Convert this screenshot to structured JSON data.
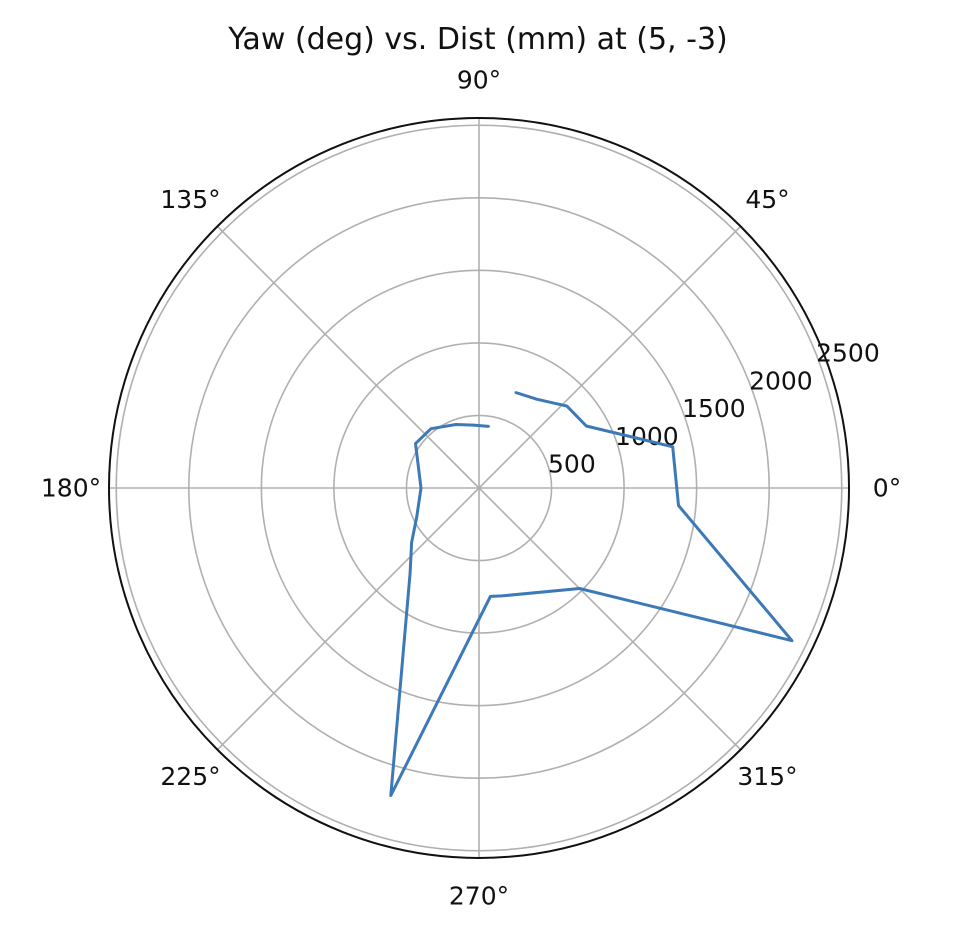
{
  "chart_data": {
    "type": "polar-line",
    "title": "Yaw (deg) vs. Dist (mm) at (5, -3)",
    "theta_unit": "deg",
    "r_lim": [
      0,
      2550
    ],
    "angle_ticks": [
      {
        "deg": 0,
        "label": "0°"
      },
      {
        "deg": 45,
        "label": "45°"
      },
      {
        "deg": 90,
        "label": "90°"
      },
      {
        "deg": 135,
        "label": "135°"
      },
      {
        "deg": 180,
        "label": "180°"
      },
      {
        "deg": 225,
        "label": "225°"
      },
      {
        "deg": 270,
        "label": "270°"
      },
      {
        "deg": 315,
        "label": "315°"
      }
    ],
    "radial_ticks": [
      {
        "value": 500,
        "label": "500"
      },
      {
        "value": 1000,
        "label": "1000"
      },
      {
        "value": 1500,
        "label": "1500"
      },
      {
        "value": 2000,
        "label": "2000"
      },
      {
        "value": 2500,
        "label": "2500"
      }
    ],
    "grid": true,
    "series": [
      {
        "color": "#3d78b7",
        "points": [
          {
            "theta": 81,
            "r": 430
          },
          {
            "theta": 95,
            "r": 435
          },
          {
            "theta": 110,
            "r": 466
          },
          {
            "theta": 129,
            "r": 526
          },
          {
            "theta": 145,
            "r": 534
          },
          {
            "theta": 180,
            "r": 400
          },
          {
            "theta": 205,
            "r": 474
          },
          {
            "theta": 219,
            "r": 598
          },
          {
            "theta": 231,
            "r": 755
          },
          {
            "theta": 254,
            "r": 2205
          },
          {
            "theta": 276,
            "r": 751
          },
          {
            "theta": 282,
            "r": 760
          },
          {
            "theta": 315,
            "r": 980
          },
          {
            "theta": 334,
            "r": 2400
          },
          {
            "theta": 355,
            "r": 1380
          },
          {
            "theta": 12,
            "r": 1365
          },
          {
            "theta": 30,
            "r": 854
          },
          {
            "theta": 43,
            "r": 828
          },
          {
            "theta": 57,
            "r": 730
          },
          {
            "theta": 69,
            "r": 705
          }
        ]
      }
    ]
  }
}
